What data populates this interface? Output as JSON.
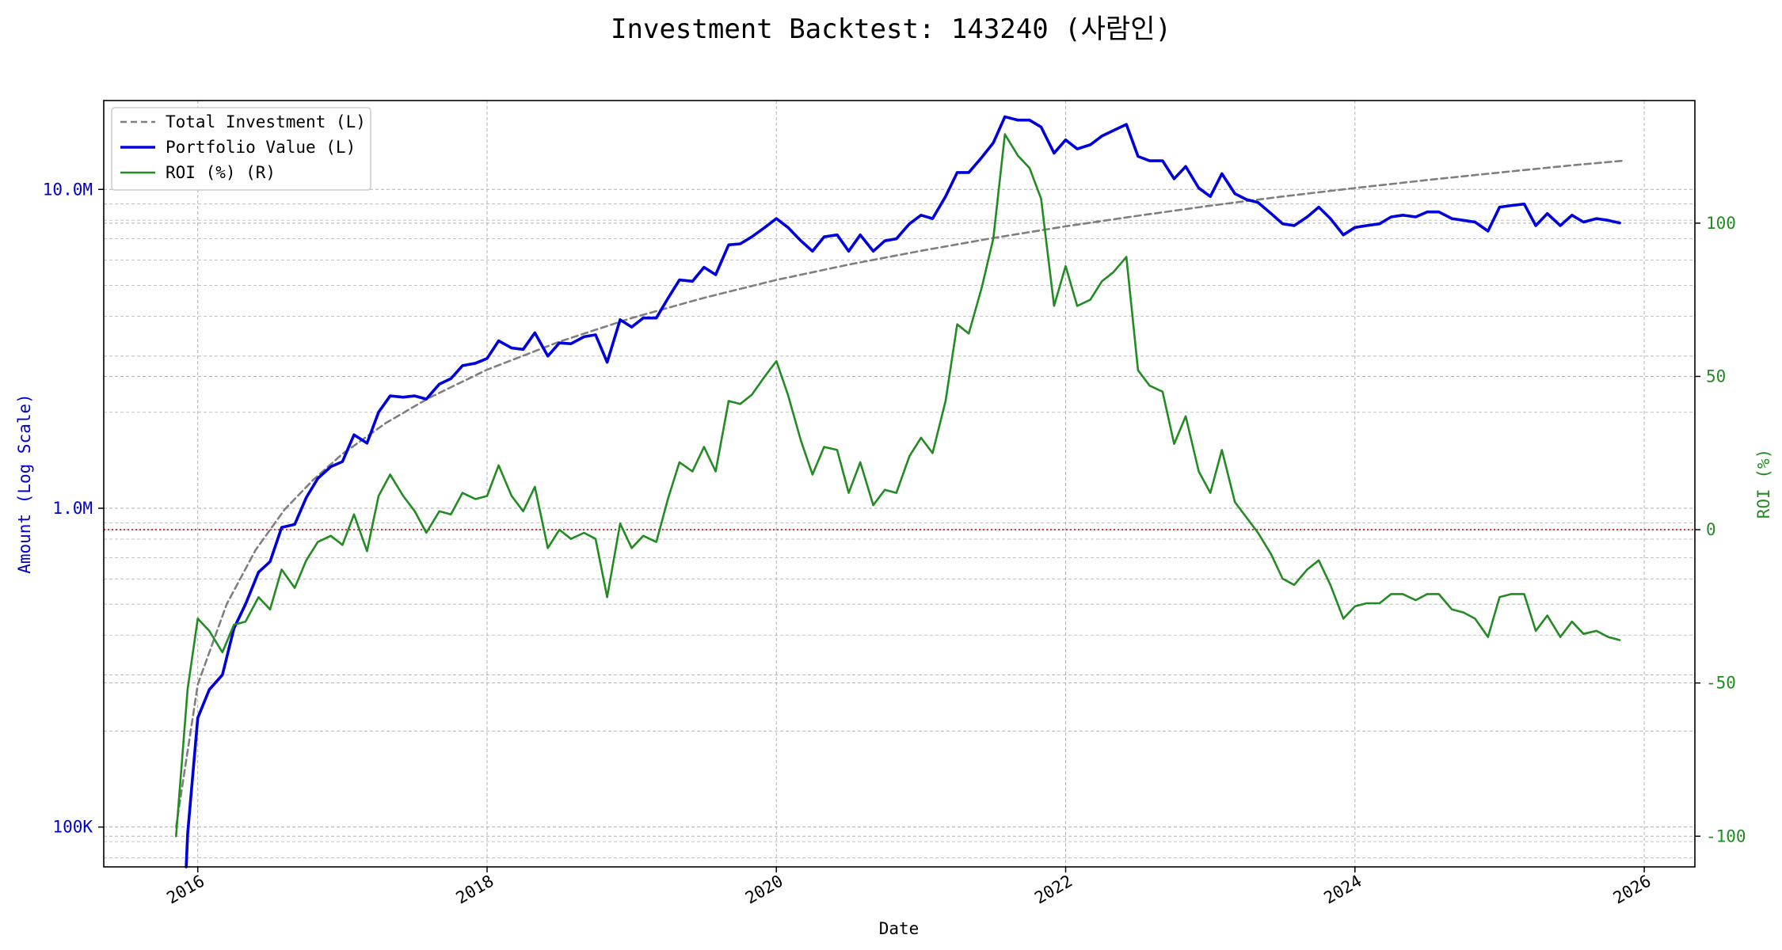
{
  "chart_data": {
    "type": "line",
    "title": "Investment Backtest: 143240 (사람인)",
    "xlabel": "Date",
    "ylabel_left": "Amount (Log Scale)",
    "ylabel_right": "ROI (%)",
    "x_ticks": [
      "2016",
      "2018",
      "2020",
      "2022",
      "2024",
      "2026"
    ],
    "y_left_ticks": [
      "100K",
      "1.0M",
      "10.0M"
    ],
    "y_right_ticks": [
      "-100",
      "-50",
      "0",
      "50",
      "100"
    ],
    "x_range": [
      2015.35,
      2026.35
    ],
    "y_left_range": [
      75000,
      19000000
    ],
    "y_left_scale": "log",
    "y_right_range": [
      -110,
      140
    ],
    "grid": true,
    "legend_position": "top-left",
    "reference_line": {
      "axis": "right",
      "value": 0,
      "color": "#c0392b",
      "style": "dotted"
    },
    "colors": {
      "total_investment": "#7f7f7f",
      "portfolio_value": "#0000dd",
      "roi": "#228b22",
      "left_axis": "#0000cc",
      "right_axis": "#228b22"
    },
    "series": [
      {
        "name": "Total Investment (L)",
        "axis": "left",
        "style": "dashed",
        "x": [
          2015.85,
          2016.0,
          2016.2,
          2016.4,
          2016.6,
          2016.8,
          2017.0,
          2017.3,
          2017.6,
          2018.0,
          2018.5,
          2019.0,
          2019.5,
          2020.0,
          2020.5,
          2021.0,
          2021.5,
          2022.0,
          2022.5,
          2023.0,
          2023.5,
          2024.0,
          2024.5,
          2025.0,
          2025.5,
          2025.85
        ],
        "values": [
          100000,
          280000,
          500000,
          740000,
          990000,
          1230000,
          1480000,
          1850000,
          2220000,
          2720000,
          3330000,
          3950000,
          4570000,
          5200000,
          5810000,
          6420000,
          7040000,
          7660000,
          8270000,
          8890000,
          9500000,
          10100000,
          10700000,
          11300000,
          11900000,
          12300000
        ]
      },
      {
        "name": "Portfolio Value (L)",
        "axis": "left",
        "style": "solid",
        "x": [
          2015.92,
          2015.93,
          2016.0,
          2016.08,
          2016.17,
          2016.25,
          2016.33,
          2016.42,
          2016.5,
          2016.58,
          2016.67,
          2016.75,
          2016.83,
          2016.92,
          2017.0,
          2017.08,
          2017.17,
          2017.25,
          2017.33,
          2017.42,
          2017.5,
          2017.58,
          2017.67,
          2017.75,
          2017.83,
          2017.92,
          2018.0,
          2018.08,
          2018.17,
          2018.25,
          2018.33,
          2018.42,
          2018.5,
          2018.58,
          2018.67,
          2018.75,
          2018.83,
          2018.92,
          2019.0,
          2019.08,
          2019.17,
          2019.25,
          2019.33,
          2019.42,
          2019.5,
          2019.58,
          2019.67,
          2019.75,
          2019.83,
          2019.92,
          2020.0,
          2020.08,
          2020.17,
          2020.25,
          2020.33,
          2020.42,
          2020.5,
          2020.58,
          2020.67,
          2020.75,
          2020.83,
          2020.92,
          2021.0,
          2021.08,
          2021.17,
          2021.25,
          2021.33,
          2021.42,
          2021.5,
          2021.58,
          2021.67,
          2021.75,
          2021.83,
          2021.92,
          2022.0,
          2022.08,
          2022.17,
          2022.25,
          2022.33,
          2022.42,
          2022.5,
          2022.58,
          2022.67,
          2022.75,
          2022.83,
          2022.92,
          2023.0,
          2023.08,
          2023.17,
          2023.25,
          2023.33,
          2023.42,
          2023.5,
          2023.58,
          2023.67,
          2023.75,
          2023.83,
          2023.92,
          2024.0,
          2024.08,
          2024.17,
          2024.25,
          2024.33,
          2024.42,
          2024.5,
          2024.58,
          2024.67,
          2024.75,
          2024.83,
          2024.92,
          2025.0,
          2025.08,
          2025.17,
          2025.25,
          2025.33,
          2025.42,
          2025.5,
          2025.58,
          2025.67,
          2025.75,
          2025.83
        ],
        "values": [
          75000,
          95000,
          220000,
          270000,
          300000,
          420000,
          500000,
          630000,
          680000,
          870000,
          890000,
          1080000,
          1240000,
          1350000,
          1400000,
          1700000,
          1600000,
          2000000,
          2250000,
          2230000,
          2250000,
          2200000,
          2450000,
          2550000,
          2800000,
          2850000,
          2950000,
          3350000,
          3180000,
          3150000,
          3550000,
          3000000,
          3300000,
          3280000,
          3450000,
          3500000,
          2870000,
          3900000,
          3700000,
          3950000,
          3950000,
          4550000,
          5200000,
          5150000,
          5700000,
          5400000,
          6700000,
          6750000,
          7100000,
          7600000,
          8100000,
          7600000,
          6900000,
          6400000,
          7100000,
          7200000,
          6400000,
          7200000,
          6400000,
          6900000,
          7000000,
          7800000,
          8300000,
          8100000,
          9500000,
          11300000,
          11300000,
          12600000,
          14000000,
          16900000,
          16500000,
          16500000,
          15700000,
          13000000,
          14300000,
          13400000,
          13800000,
          14700000,
          15300000,
          16000000,
          12700000,
          12300000,
          12300000,
          10800000,
          11800000,
          10100000,
          9500000,
          11200000,
          9700000,
          9300000,
          9100000,
          8400000,
          7800000,
          7700000,
          8200000,
          8800000,
          8100000,
          7200000,
          7600000,
          7700000,
          7800000,
          8200000,
          8300000,
          8200000,
          8500000,
          8500000,
          8100000,
          8000000,
          7900000,
          7400000,
          8800000,
          8900000,
          9000000,
          7700000,
          8400000,
          7700000,
          8300000,
          7900000,
          8100000,
          8000000,
          7850000
        ]
      },
      {
        "name": "ROI (%) (R)",
        "axis": "right",
        "style": "solid",
        "x": [
          2015.85,
          2015.93,
          2016.0,
          2016.08,
          2016.17,
          2016.25,
          2016.33,
          2016.42,
          2016.5,
          2016.58,
          2016.67,
          2016.75,
          2016.83,
          2016.92,
          2017.0,
          2017.08,
          2017.17,
          2017.25,
          2017.33,
          2017.42,
          2017.5,
          2017.58,
          2017.67,
          2017.75,
          2017.83,
          2017.92,
          2018.0,
          2018.08,
          2018.17,
          2018.25,
          2018.33,
          2018.42,
          2018.5,
          2018.58,
          2018.67,
          2018.75,
          2018.83,
          2018.92,
          2019.0,
          2019.08,
          2019.17,
          2019.25,
          2019.33,
          2019.42,
          2019.5,
          2019.58,
          2019.67,
          2019.75,
          2019.83,
          2019.92,
          2020.0,
          2020.08,
          2020.17,
          2020.25,
          2020.33,
          2020.42,
          2020.5,
          2020.58,
          2020.67,
          2020.75,
          2020.83,
          2020.92,
          2021.0,
          2021.08,
          2021.17,
          2021.25,
          2021.33,
          2021.42,
          2021.5,
          2021.58,
          2021.67,
          2021.75,
          2021.83,
          2021.92,
          2022.0,
          2022.08,
          2022.17,
          2022.25,
          2022.33,
          2022.42,
          2022.5,
          2022.58,
          2022.67,
          2022.75,
          2022.83,
          2022.92,
          2023.0,
          2023.08,
          2023.17,
          2023.25,
          2023.33,
          2023.42,
          2023.5,
          2023.58,
          2023.67,
          2023.75,
          2023.83,
          2023.92,
          2024.0,
          2024.08,
          2024.17,
          2024.25,
          2024.33,
          2024.42,
          2024.5,
          2024.58,
          2024.67,
          2024.75,
          2024.83,
          2024.92,
          2025.0,
          2025.08,
          2025.17,
          2025.25,
          2025.33,
          2025.42,
          2025.5,
          2025.58,
          2025.67,
          2025.75,
          2025.83
        ],
        "values": [
          -100,
          -52,
          -29,
          -33,
          -40,
          -31,
          -30,
          -22,
          -26,
          -13,
          -19,
          -10,
          -4,
          -2,
          -5,
          5,
          -7,
          11,
          18,
          11,
          6,
          -1,
          6,
          5,
          12,
          10,
          11,
          21,
          11,
          6,
          14,
          -6,
          0,
          -3,
          -1,
          -3,
          -22,
          2,
          -6,
          -2,
          -4,
          10,
          22,
          19,
          27,
          19,
          42,
          41,
          44,
          50,
          55,
          44,
          29,
          18,
          27,
          26,
          12,
          22,
          8,
          13,
          12,
          24,
          30,
          25,
          42,
          67,
          64,
          79,
          95,
          129,
          122,
          118,
          108,
          73,
          86,
          73,
          75,
          81,
          84,
          89,
          52,
          47,
          45,
          28,
          37,
          19,
          12,
          26,
          9,
          4,
          -1,
          -8,
          -16,
          -18,
          -13,
          -10,
          -18,
          -29,
          -25,
          -24,
          -24,
          -21,
          -21,
          -23,
          -21,
          -21,
          -26,
          -27,
          -29,
          -35,
          -22,
          -21,
          -21,
          -33,
          -28,
          -35,
          -30,
          -34,
          -33,
          -35,
          -36
        ]
      }
    ]
  }
}
